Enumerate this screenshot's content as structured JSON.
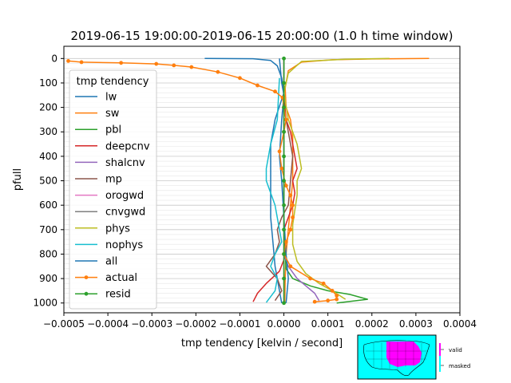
{
  "chart_data": {
    "type": "line",
    "title": "2019-06-15 19:00:00-2019-06-15 20:00:00 (1.0 h time window)",
    "xlabel": "tmp tendency [kelvin / second]",
    "ylabel": "pfull",
    "xlim": [
      -0.0005,
      0.0004
    ],
    "ylim": [
      1040,
      -50
    ],
    "y_inverted": true,
    "x_ticks": [
      -0.0005,
      -0.0004,
      -0.0003,
      -0.0002,
      -0.0001,
      0.0,
      0.0001,
      0.0002,
      0.0003,
      0.0004
    ],
    "x_tick_labels": [
      "−0.0005",
      "−0.0004",
      "−0.0003",
      "−0.0002",
      "−0.0001",
      "0.0000",
      "0.0001",
      "0.0002",
      "0.0003",
      "0.0004"
    ],
    "y_ticks": [
      0,
      100,
      200,
      300,
      400,
      500,
      600,
      700,
      800,
      900,
      1000
    ],
    "y_tick_labels": [
      "0",
      "100",
      "200",
      "300",
      "400",
      "500",
      "600",
      "700",
      "800",
      "900",
      "1000"
    ],
    "grid": "horizontal minor",
    "legend": {
      "title": "tmp tendency",
      "placement": "upper-left"
    },
    "series": [
      {
        "name": "lw",
        "color": "#1f77b4",
        "marker": false,
        "points": [
          [
            -0.00018,
            0
          ],
          [
            -7e-05,
            1
          ],
          [
            -3e-05,
            8
          ],
          [
            -1.5e-05,
            30
          ],
          [
            -5e-06,
            80
          ],
          [
            0.0,
            140
          ],
          [
            -2e-05,
            250
          ],
          [
            -3e-05,
            350
          ],
          [
            -3e-05,
            450
          ],
          [
            -3e-05,
            550
          ],
          [
            -3e-05,
            650
          ],
          [
            -2.5e-05,
            750
          ],
          [
            -2e-05,
            850
          ],
          [
            -1e-05,
            950
          ],
          [
            -5e-06,
            1000
          ]
        ]
      },
      {
        "name": "sw",
        "color": "#ff7f0e",
        "marker": false,
        "points": [
          [
            0.00033,
            0
          ],
          [
            0.0002,
            2
          ],
          [
            0.00011,
            5
          ],
          [
            4e-05,
            15
          ],
          [
            1e-05,
            50
          ],
          [
            3e-06,
            120
          ],
          [
            5e-06,
            200
          ],
          [
            1.5e-05,
            250
          ],
          [
            2e-05,
            320
          ],
          [
            2e-05,
            400
          ],
          [
            2e-05,
            500
          ],
          [
            1.5e-05,
            600
          ],
          [
            1e-05,
            700
          ],
          [
            5e-06,
            800
          ],
          [
            3e-06,
            900
          ],
          [
            2e-06,
            1000
          ]
        ]
      },
      {
        "name": "pbl",
        "color": "#2ca02c",
        "marker": false,
        "points": [
          [
            0.0,
            0
          ],
          [
            0.0,
            700
          ],
          [
            5e-06,
            860
          ],
          [
            2e-05,
            900
          ],
          [
            6e-05,
            930
          ],
          [
            0.0001,
            950
          ],
          [
            0.00015,
            965
          ],
          [
            0.00019,
            985
          ],
          [
            0.00012,
            1000
          ]
        ]
      },
      {
        "name": "deepcnv",
        "color": "#d62728",
        "marker": false,
        "points": [
          [
            0.0,
            0
          ],
          [
            0.0,
            150
          ],
          [
            5e-06,
            250
          ],
          [
            1.5e-05,
            300
          ],
          [
            2e-05,
            350
          ],
          [
            2.5e-05,
            400
          ],
          [
            3e-05,
            450
          ],
          [
            2e-05,
            500
          ],
          [
            2.5e-05,
            550
          ],
          [
            2e-05,
            600
          ],
          [
            1e-05,
            650
          ],
          [
            0.0,
            700
          ],
          [
            5e-06,
            800
          ],
          [
            -1e-05,
            870
          ],
          [
            -4e-05,
            920
          ],
          [
            -6e-05,
            960
          ],
          [
            -7e-05,
            995
          ]
        ]
      },
      {
        "name": "shalcnv",
        "color": "#9467bd",
        "marker": false,
        "points": [
          [
            0.0,
            0
          ],
          [
            0.0,
            800
          ],
          [
            1e-05,
            850
          ],
          [
            3e-05,
            900
          ],
          [
            5e-05,
            930
          ],
          [
            7e-05,
            960
          ],
          [
            8e-05,
            990
          ]
        ]
      },
      {
        "name": "mp",
        "color": "#8c564b",
        "marker": false,
        "points": [
          [
            0.0,
            0
          ],
          [
            0.0,
            200
          ],
          [
            1e-05,
            300
          ],
          [
            2e-05,
            400
          ],
          [
            1.5e-05,
            500
          ],
          [
            1e-05,
            600
          ],
          [
            -5e-06,
            650
          ],
          [
            -1.5e-05,
            700
          ],
          [
            -1e-05,
            750
          ],
          [
            -2e-05,
            800
          ],
          [
            -4e-05,
            850
          ],
          [
            -1.5e-05,
            900
          ],
          [
            -5e-06,
            950
          ],
          [
            -2e-05,
            990
          ]
        ]
      },
      {
        "name": "orogwd",
        "color": "#e377c2",
        "marker": false,
        "points": [
          [
            0.0,
            0
          ],
          [
            0.0,
            1000
          ]
        ]
      },
      {
        "name": "cnvgwd",
        "color": "#7f7f7f",
        "marker": false,
        "points": [
          [
            0.0,
            0
          ],
          [
            0.0,
            1000
          ]
        ]
      },
      {
        "name": "phys",
        "color": "#bcbd22",
        "marker": false,
        "points": [
          [
            0.00024,
            0
          ],
          [
            0.00014,
            3
          ],
          [
            4e-05,
            12
          ],
          [
            1e-05,
            60
          ],
          [
            0.0,
            140
          ],
          [
            1e-05,
            250
          ],
          [
            3e-05,
            350
          ],
          [
            4e-05,
            450
          ],
          [
            3e-05,
            500
          ],
          [
            3e-05,
            560
          ],
          [
            2.5e-05,
            620
          ],
          [
            2e-05,
            680
          ],
          [
            2e-05,
            760
          ],
          [
            3e-05,
            830
          ],
          [
            5e-05,
            880
          ],
          [
            8e-05,
            920
          ],
          [
            0.00011,
            950
          ],
          [
            0.00014,
            985
          ]
        ]
      },
      {
        "name": "nophys",
        "color": "#17becf",
        "marker": false,
        "points": [
          [
            -1e-05,
            80
          ],
          [
            -1.5e-05,
            250
          ],
          [
            -3e-05,
            350
          ],
          [
            -4e-05,
            450
          ],
          [
            -4e-05,
            500
          ],
          [
            -2e-05,
            600
          ],
          [
            -1e-05,
            700
          ],
          [
            -5e-06,
            750
          ],
          [
            -2e-05,
            800
          ],
          [
            -3e-05,
            850
          ],
          [
            -1.5e-05,
            900
          ],
          [
            -2e-05,
            950
          ],
          [
            -4e-05,
            998
          ]
        ]
      },
      {
        "name": "all",
        "color": "#1f77b4",
        "marker": false,
        "points": [
          [
            -1e-05,
            0
          ],
          [
            -5e-06,
            100
          ],
          [
            0.0,
            150
          ],
          [
            -5e-06,
            250
          ],
          [
            -1e-05,
            400
          ],
          [
            -5e-06,
            500
          ],
          [
            0.0,
            650
          ],
          [
            5e-06,
            800
          ],
          [
            1e-05,
            900
          ],
          [
            5e-06,
            1000
          ]
        ]
      },
      {
        "name": "actual",
        "color": "#ff7f0e",
        "marker": true,
        "points": [
          [
            -0.00049,
            10
          ],
          [
            -0.00046,
            15
          ],
          [
            -0.00037,
            18
          ],
          [
            -0.00029,
            22
          ],
          [
            -0.00025,
            28
          ],
          [
            -0.00021,
            35
          ],
          [
            -0.00015,
            55
          ],
          [
            -0.0001,
            80
          ],
          [
            -6e-05,
            110
          ],
          [
            -2e-05,
            135
          ],
          [
            -3e-06,
            160
          ],
          [
            0.0,
            200
          ],
          [
            5e-06,
            250
          ],
          [
            0.0,
            300
          ],
          [
            -1e-05,
            380
          ],
          [
            -5e-06,
            450
          ],
          [
            5e-06,
            520
          ],
          [
            1.5e-05,
            560
          ],
          [
            2e-05,
            600
          ],
          [
            2e-05,
            650
          ],
          [
            1.5e-05,
            700
          ],
          [
            5e-06,
            750
          ],
          [
            0.0,
            800
          ],
          [
            1.5e-05,
            850
          ],
          [
            6e-05,
            900
          ],
          [
            9e-05,
            920
          ],
          [
            0.00011,
            950
          ],
          [
            0.00012,
            970
          ],
          [
            0.00012,
            985
          ],
          [
            0.0001,
            990
          ],
          [
            7e-05,
            995
          ]
        ]
      },
      {
        "name": "resid",
        "color": "#2ca02c",
        "marker": true,
        "points": [
          [
            0.0,
            0
          ],
          [
            0.0,
            100
          ],
          [
            0.0,
            200
          ],
          [
            0.0,
            300
          ],
          [
            0.0,
            400
          ],
          [
            0.0,
            500
          ],
          [
            0.0,
            600
          ],
          [
            0.0,
            700
          ],
          [
            0.0,
            800
          ],
          [
            0.0,
            900
          ],
          [
            0.0,
            1000
          ]
        ]
      }
    ]
  },
  "inset": {
    "legend": [
      "valid",
      "masked"
    ],
    "colors": {
      "valid": "#ff00ff",
      "masked": "#00ffff",
      "border": "#000000"
    }
  }
}
